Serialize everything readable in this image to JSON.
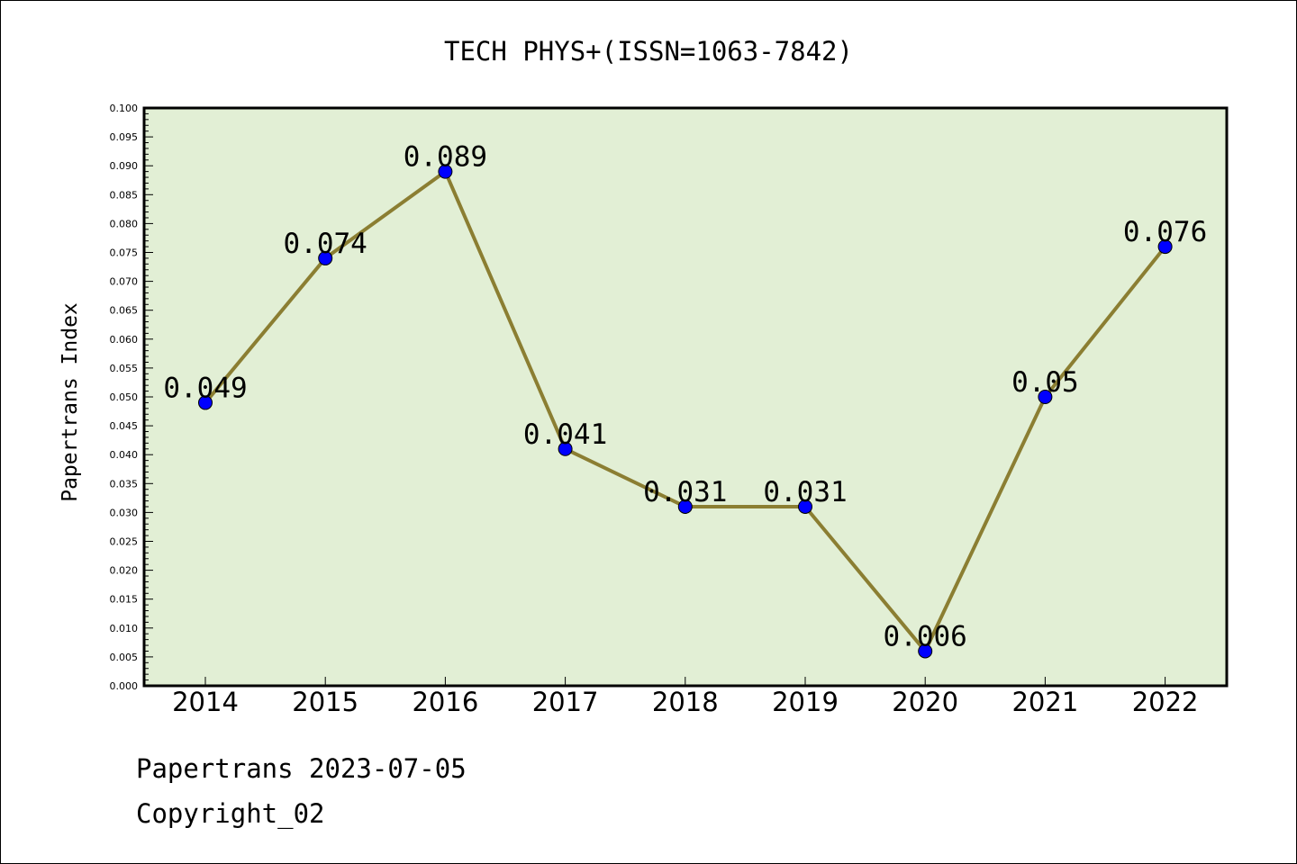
{
  "chart_data": {
    "type": "line",
    "title": "TECH PHYS+(ISSN=1063-7842)",
    "xlabel": "",
    "ylabel": "Papertrans Index",
    "categories": [
      "2014",
      "2015",
      "2016",
      "2017",
      "2018",
      "2019",
      "2020",
      "2021",
      "2022"
    ],
    "values": [
      0.049,
      0.074,
      0.089,
      0.041,
      0.031,
      0.031,
      0.006,
      0.05,
      0.076
    ],
    "data_labels": [
      "0.049",
      "0.074",
      "0.089",
      "0.041",
      "0.031",
      "0.031",
      "0.006",
      "0.05",
      "0.076"
    ],
    "ylim": [
      0,
      0.1
    ],
    "y_major_ticks": [
      "0.000",
      "0.005",
      "0.010",
      "0.015",
      "0.020",
      "0.025",
      "0.030",
      "0.035",
      "0.040",
      "0.045",
      "0.050",
      "0.055",
      "0.060",
      "0.065",
      "0.070",
      "0.075",
      "0.080",
      "0.085",
      "0.090",
      "0.095",
      "0.100"
    ],
    "grid": false,
    "colors": {
      "plot_background": "#e2efd5",
      "line": "#8b7e32",
      "marker": "#0000ff"
    }
  },
  "footer": {
    "line1": "Papertrans 2023-07-05",
    "line2": "Copyright_02"
  }
}
